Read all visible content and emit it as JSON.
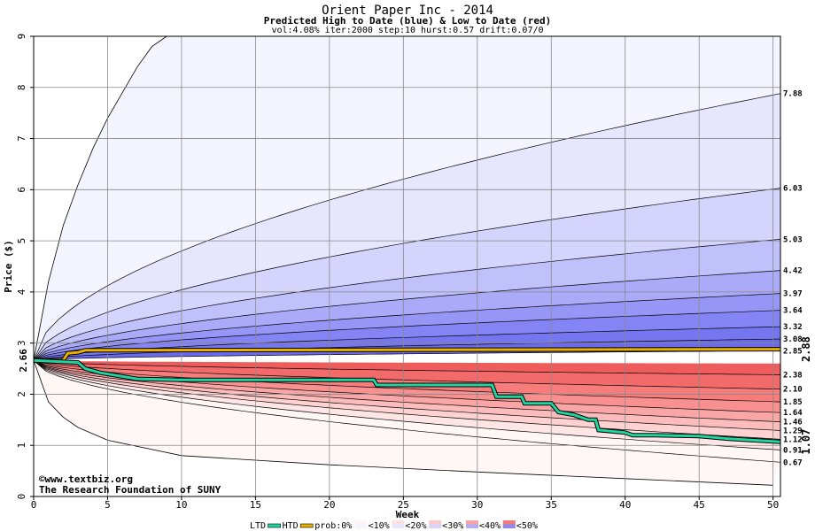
{
  "chart_data": {
    "type": "area",
    "title": "Orient Paper Inc - 2014",
    "subtitle": "Predicted High to Date (blue) &  Low to Date (red)",
    "params": "vol:4.08% iter:2000 step:10 hurst:0.57 drift:0.07/0",
    "xlabel": "Week",
    "ylabel": "Price ($)",
    "xlim": [
      0,
      50.5
    ],
    "ylim": [
      0,
      9
    ],
    "xticks": [
      0,
      5,
      10,
      15,
      20,
      25,
      30,
      35,
      40,
      45,
      50
    ],
    "yticks": [
      0,
      1,
      2,
      3,
      4,
      5,
      6,
      7,
      8,
      9
    ],
    "grid": true,
    "start_price": 2.66,
    "start_label": "2.66",
    "end_labels_right": {
      "htd": "2.88",
      "ltd": "1.07"
    },
    "high_band_ends": [
      7.88,
      6.03,
      5.03,
      4.42,
      3.97,
      3.64,
      3.32,
      3.08,
      2.85
    ],
    "high_band_labels": [
      "7.88",
      "6.03",
      "5.03",
      "4.42",
      "3.97",
      "3.64",
      "3.32",
      "3.08",
      "2.85"
    ],
    "low_band_ends": [
      2.38,
      2.1,
      1.85,
      1.64,
      1.46,
      1.29,
      1.12,
      0.91,
      0.67
    ],
    "low_band_labels": [
      "2.38",
      "2.10",
      "1.85",
      "1.64",
      "1.46",
      "1.29",
      "1.12",
      "0.91",
      "0.67"
    ],
    "outer_high_envelope": {
      "x": [
        0,
        1,
        2,
        3,
        4,
        5,
        6,
        7,
        8,
        9
      ],
      "y": [
        2.66,
        4.2,
        5.3,
        6.1,
        6.8,
        7.4,
        7.9,
        8.4,
        8.8,
        9.0
      ]
    },
    "outer_low_envelope": {
      "x": [
        0,
        1,
        2,
        3,
        5,
        10,
        20,
        30,
        40,
        50
      ],
      "y": [
        2.66,
        1.85,
        1.55,
        1.35,
        1.1,
        0.8,
        0.62,
        0.48,
        0.35,
        0.22
      ]
    },
    "htd_series": {
      "name": "HTD",
      "x": [
        0,
        2,
        2.3,
        3,
        3.5,
        50.5
      ],
      "y": [
        2.66,
        2.66,
        2.8,
        2.82,
        2.86,
        2.88
      ]
    },
    "ltd_series": {
      "name": "LTD",
      "x": [
        0,
        3,
        3.5,
        4.5,
        7,
        10,
        23,
        23.2,
        31,
        31.3,
        33,
        33.2,
        35,
        35.5,
        36.5,
        37.5,
        38,
        38.2,
        40,
        40.5,
        42,
        45,
        47,
        50.5
      ],
      "y": [
        2.66,
        2.62,
        2.5,
        2.42,
        2.3,
        2.28,
        2.28,
        2.18,
        2.18,
        1.95,
        1.95,
        1.82,
        1.82,
        1.65,
        1.6,
        1.5,
        1.5,
        1.3,
        1.25,
        1.2,
        1.2,
        1.18,
        1.13,
        1.07
      ]
    },
    "colors": {
      "htd": "#e8b000",
      "ltd": "#22d3a0",
      "high_band_fills": [
        "#f4f4ff",
        "#e6e6fe",
        "#d4d4fd",
        "#c0c0fb",
        "#aaaaf9",
        "#9696f7",
        "#8484f4",
        "#7676f1",
        "#6a6aee"
      ],
      "low_band_fills": [
        "#fff6f6",
        "#ffe6e6",
        "#ffd2d2",
        "#fdbcbc",
        "#fba6a6",
        "#f99090",
        "#f77c7c",
        "#f26a6a",
        "#ee5c5c"
      ],
      "grid": "#888888",
      "start_label": "#002244",
      "htd_label": "#b38600",
      "ltd_label": "#009977"
    }
  },
  "watermark": {
    "line1": "©www.textbiz.org",
    "line2": "The Research Foundation of SUNY"
  },
  "legend": {
    "items": [
      "LTD",
      "HTD",
      "prob:0%",
      "<10%",
      "<20%",
      "<30%",
      "<40%",
      "<50%"
    ]
  }
}
